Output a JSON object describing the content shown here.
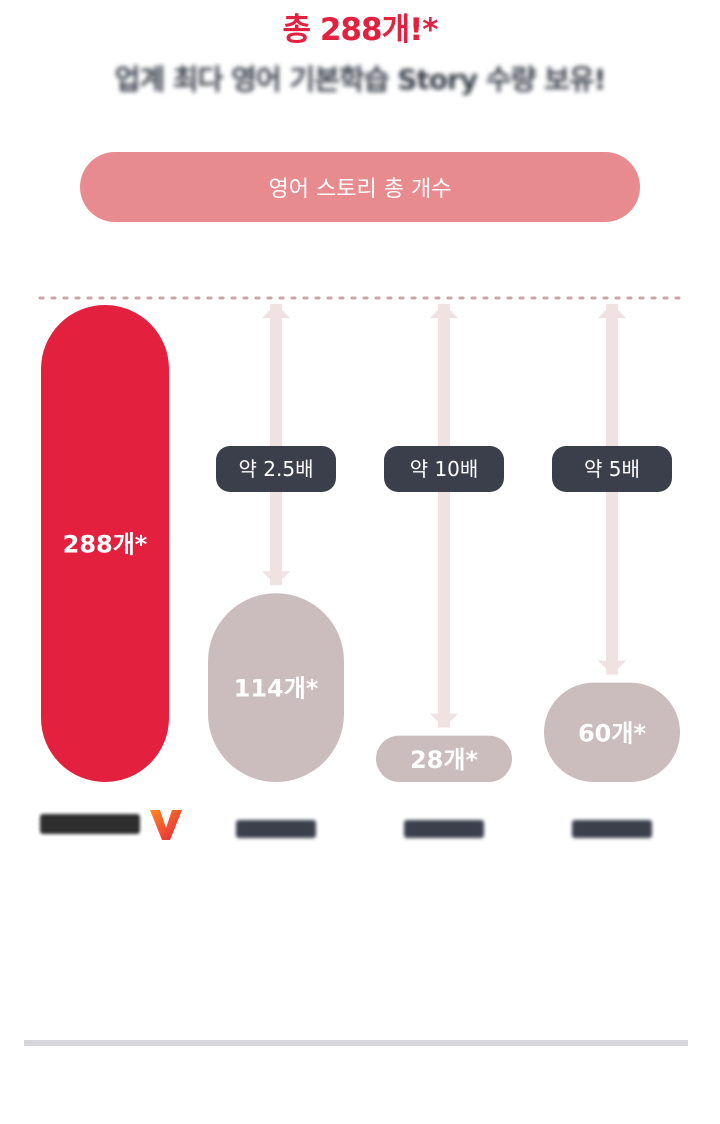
{
  "header": {
    "headline": "총 288개!*",
    "subtitle": "업계 최다 영어 기본학습 Story 수량 보유!",
    "banner_label": "영어 스토리 총 개수"
  },
  "colors": {
    "accent": "#e4203f",
    "banner": "#e88b8f",
    "competitor_bar": "#cbbcbe",
    "badge": "#3a3f4b",
    "arrow": "#f0e2e3",
    "dotted": "#c9a4a7"
  },
  "chart_data": {
    "type": "bar",
    "title": "영어 스토리 총 개수",
    "categories": [
      "brand-v",
      "competitor-a",
      "competitor-b",
      "competitor-c"
    ],
    "category_labels": [
      "",
      "",
      "",
      ""
    ],
    "values": [
      288,
      114,
      28,
      60
    ],
    "value_labels": [
      "288개*",
      "114개*",
      "28개*",
      "60개*"
    ],
    "ratio_labels": [
      "",
      "약 2.5배",
      "약 10배",
      "약 5배"
    ],
    "ylim": [
      0,
      288
    ],
    "grid": false,
    "reference_line": "dotted"
  },
  "brand": {
    "icon": "brand-v-logo",
    "mark": "V"
  },
  "footnote": {
    "line1": "",
    "line2": ""
  }
}
